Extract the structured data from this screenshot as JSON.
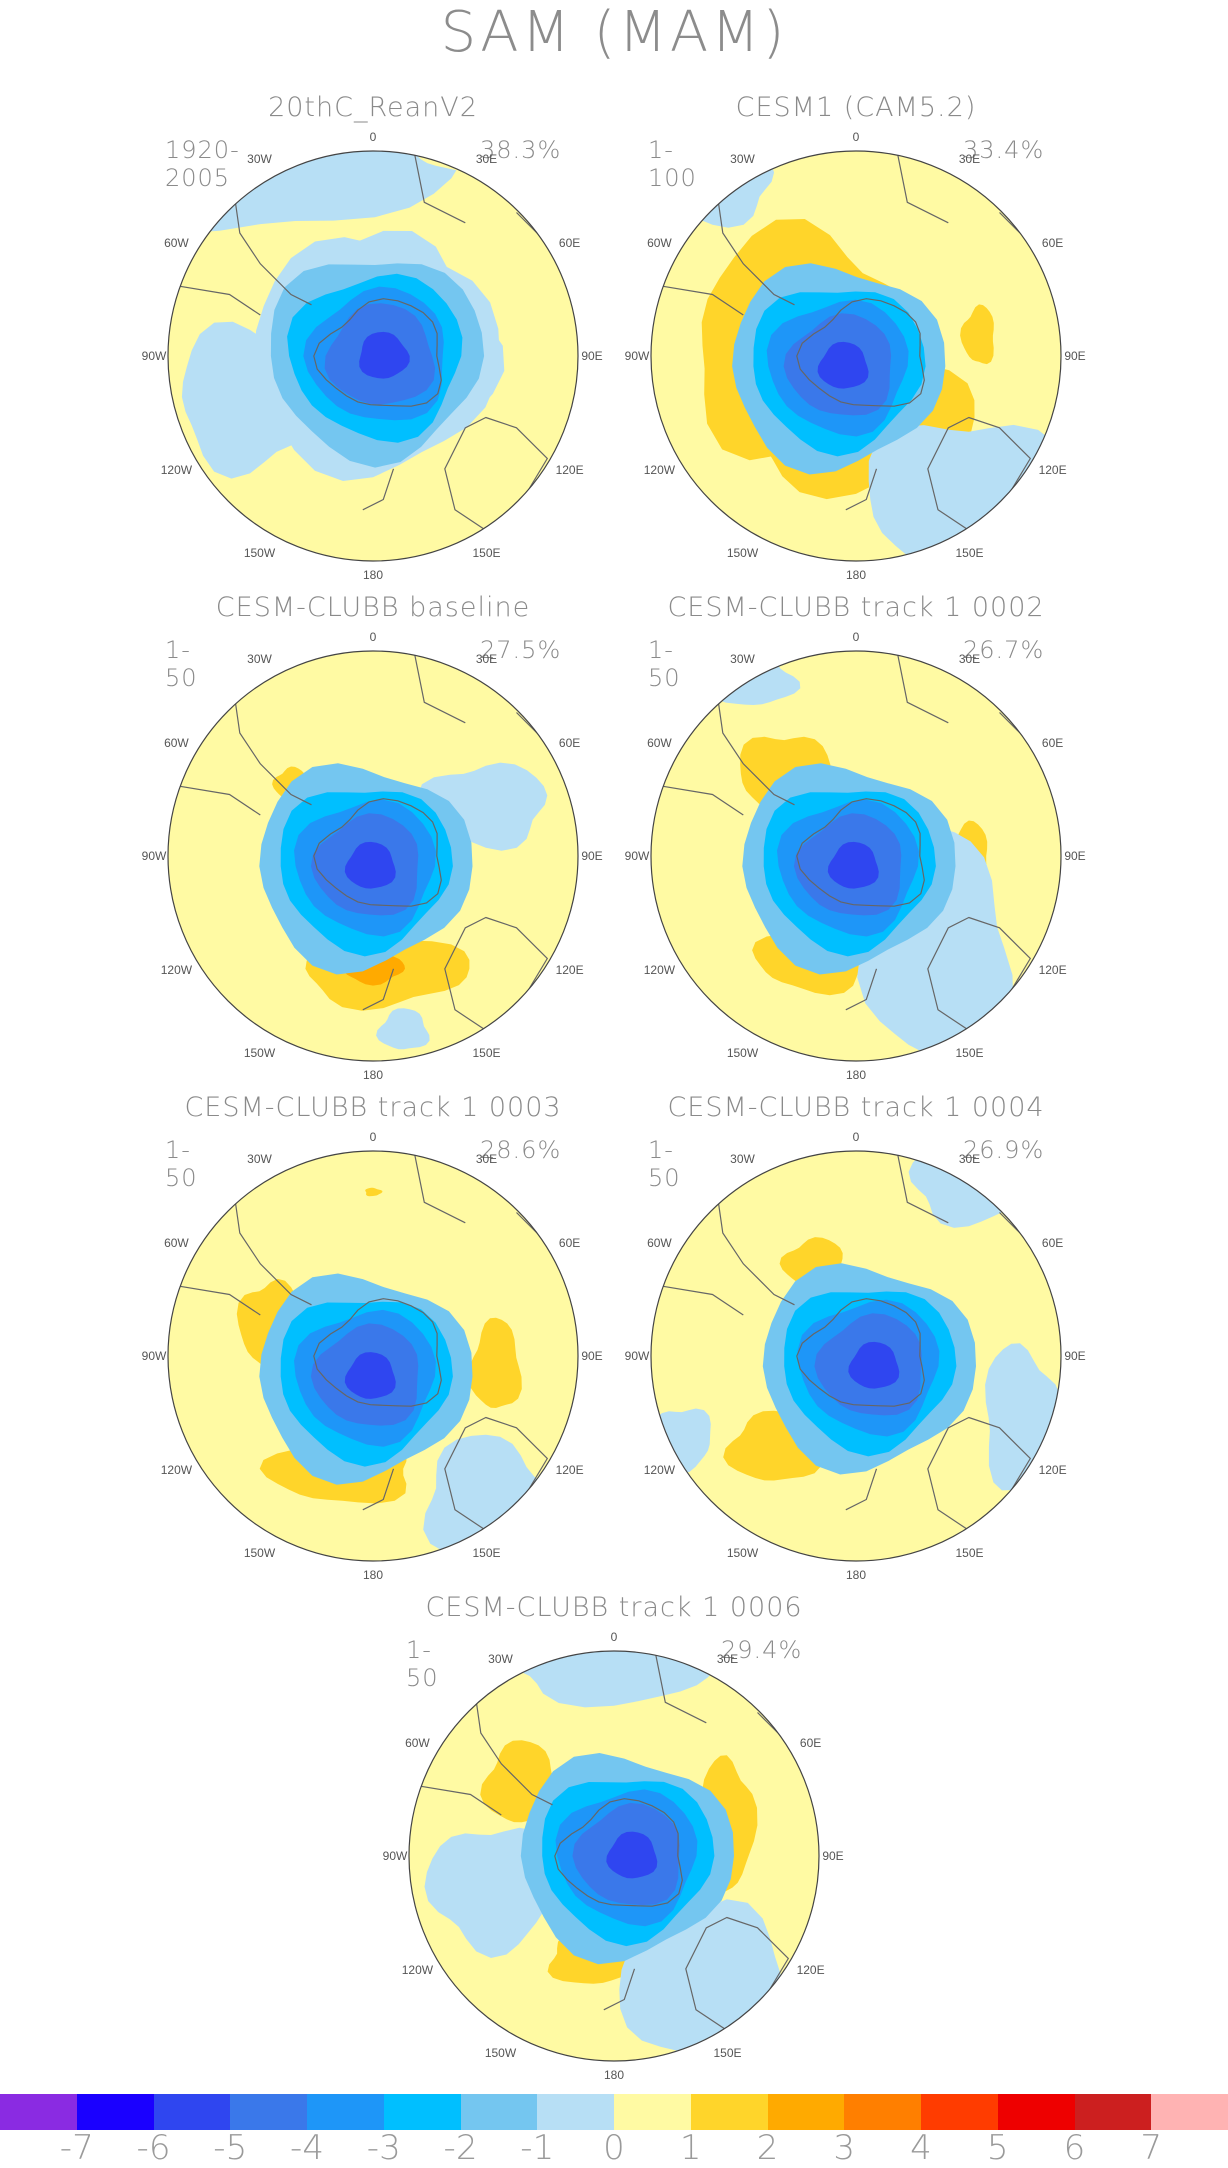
{
  "title": "SAM (MAM)",
  "lon_labels": [
    "0",
    "30E",
    "60E",
    "90E",
    "120E",
    "150E",
    "180",
    "150W",
    "120W",
    "90W",
    "60W",
    "30W"
  ],
  "panels": [
    {
      "title": "20thC_ReanV2",
      "period": "1920-2005",
      "percent": "38.3%"
    },
    {
      "title": "CESM1 (CAM5.2)",
      "period": "1-100",
      "percent": "33.4%"
    },
    {
      "title": "CESM-CLUBB baseline",
      "period": "1-50",
      "percent": "27.5%"
    },
    {
      "title": "CESM-CLUBB track 1 0002",
      "period": "1-50",
      "percent": "26.7%"
    },
    {
      "title": "CESM-CLUBB track 1 0003",
      "period": "1-50",
      "percent": "28.6%"
    },
    {
      "title": "CESM-CLUBB track 1 0004",
      "period": "1-50",
      "percent": "26.9%"
    },
    {
      "title": "CESM-CLUBB track 1 0006",
      "period": "1-50",
      "percent": "29.4%"
    }
  ],
  "colorbar": {
    "colors": [
      "#8a2be2",
      "#1a00ff",
      "#2f46f0",
      "#3a78ea",
      "#1e96f8",
      "#00bfff",
      "#74c6f0",
      "#b7dff5",
      "#fffaa3",
      "#ffd52a",
      "#ffaa00",
      "#ff7f00",
      "#ff3c00",
      "#ee0000",
      "#cc1f1f",
      "#ffb3b3"
    ],
    "labels": [
      "-7",
      "-6",
      "-5",
      "-4",
      "-3",
      "-2",
      "-1",
      "0",
      "1",
      "2",
      "3",
      "4",
      "5",
      "6",
      "7"
    ]
  }
}
